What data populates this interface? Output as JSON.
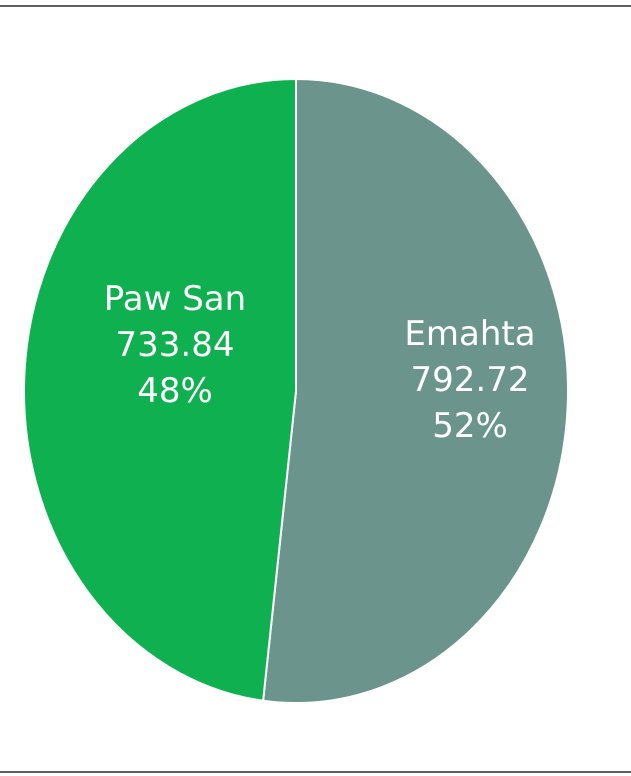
{
  "chart_data": {
    "type": "pie",
    "title": "",
    "legend": "none",
    "colors": [
      "#6b958c",
      "#0fb04f"
    ],
    "slices": [
      {
        "label": "Emahta",
        "value": 792.72,
        "percent": "52%",
        "value_text": "792.72"
      },
      {
        "label": "Paw San",
        "value": 733.84,
        "percent": "48%",
        "value_text": "733.84"
      }
    ]
  }
}
